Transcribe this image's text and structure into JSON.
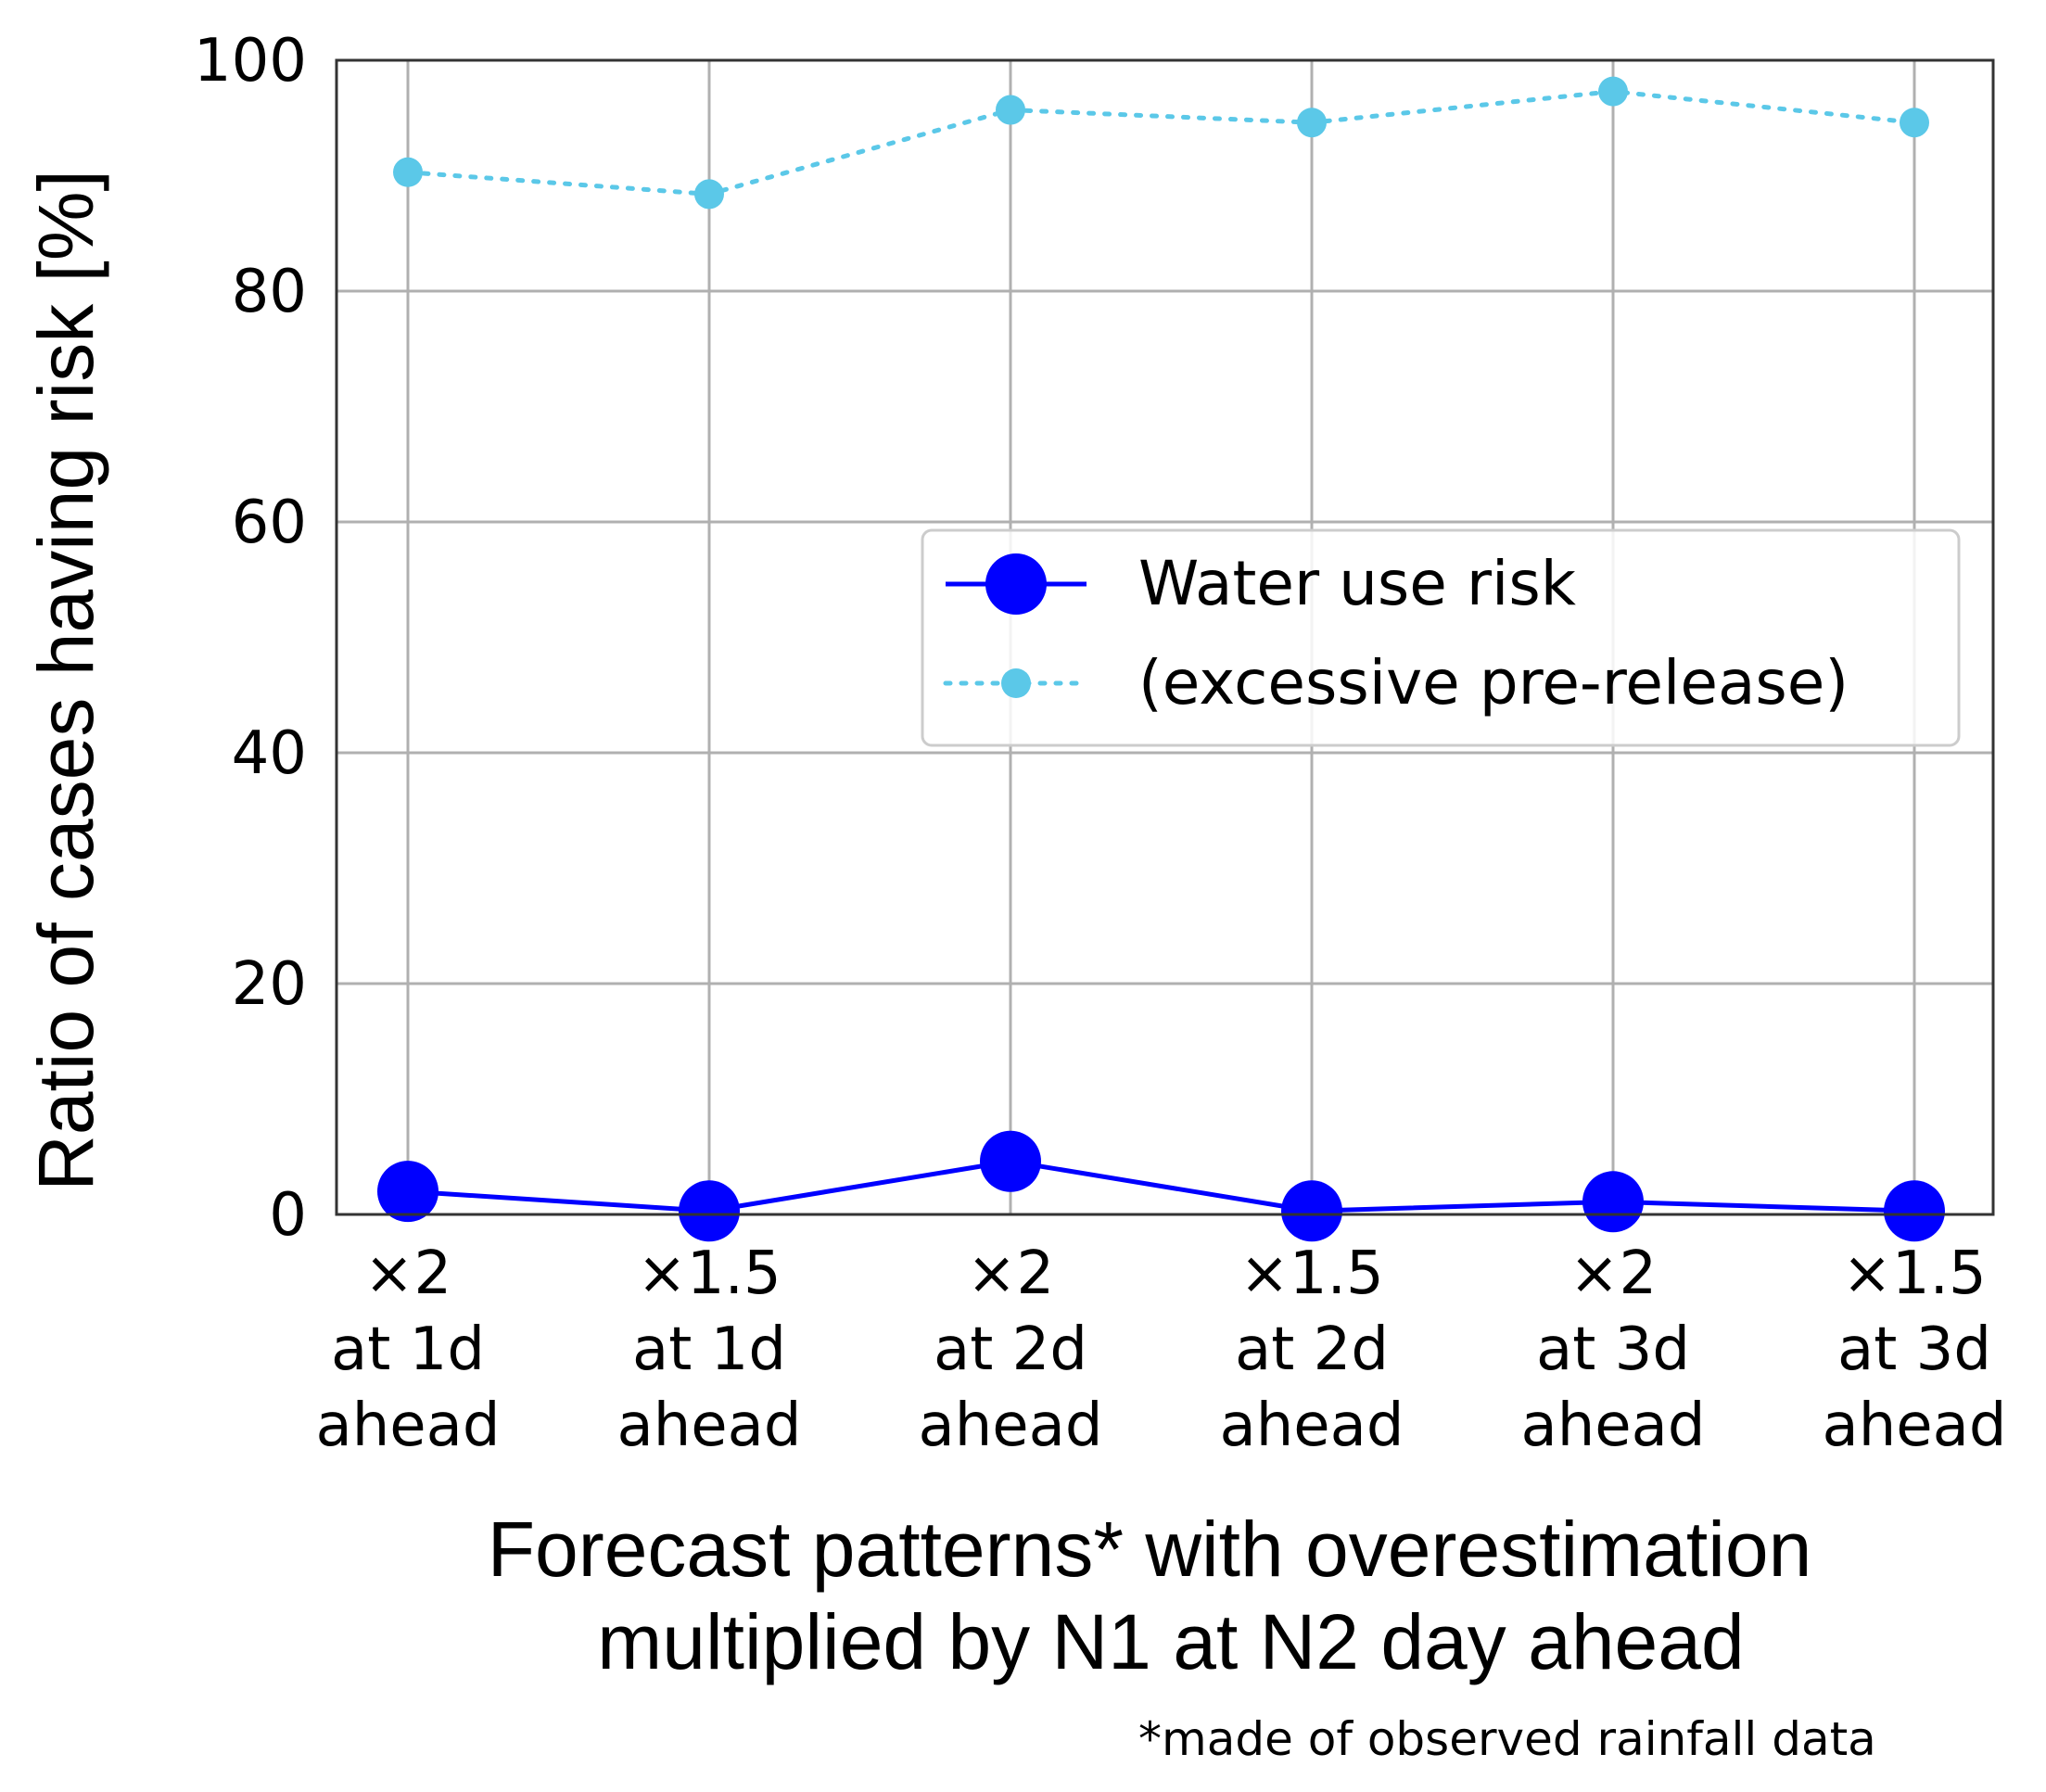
{
  "chart_data": {
    "type": "line",
    "categories": [
      [
        "×2",
        "at 1d",
        "ahead"
      ],
      [
        "×1.5",
        "at 1d",
        "ahead"
      ],
      [
        "×2",
        "at 2d",
        "ahead"
      ],
      [
        "×1.5",
        "at 2d",
        "ahead"
      ],
      [
        "×2",
        "at 3d",
        "ahead"
      ],
      [
        "×1.5",
        "at 3d",
        "ahead"
      ]
    ],
    "series": [
      {
        "name": "Water use risk",
        "color": "#0000ff",
        "linestyle": "solid",
        "values": [
          2.0,
          0.3,
          4.6,
          0.3,
          1.1,
          0.3
        ]
      },
      {
        "name": "(excessive pre-release)",
        "color": "#5bc8e8",
        "linestyle": "dotted",
        "values": [
          90.3,
          88.4,
          95.7,
          94.6,
          97.3,
          94.6
        ]
      }
    ],
    "ylabel": "Ratio of cases having risk [%]",
    "xlabel_lines": [
      "Forecast patterns* with overestimation",
      "multiplied by N1 at N2 day ahead"
    ],
    "footnote": "*made of observed rainfall data",
    "ylim": [
      0,
      100
    ],
    "yticks": [
      0,
      20,
      40,
      60,
      80,
      100
    ],
    "grid": true,
    "legend_position": "center-right"
  }
}
